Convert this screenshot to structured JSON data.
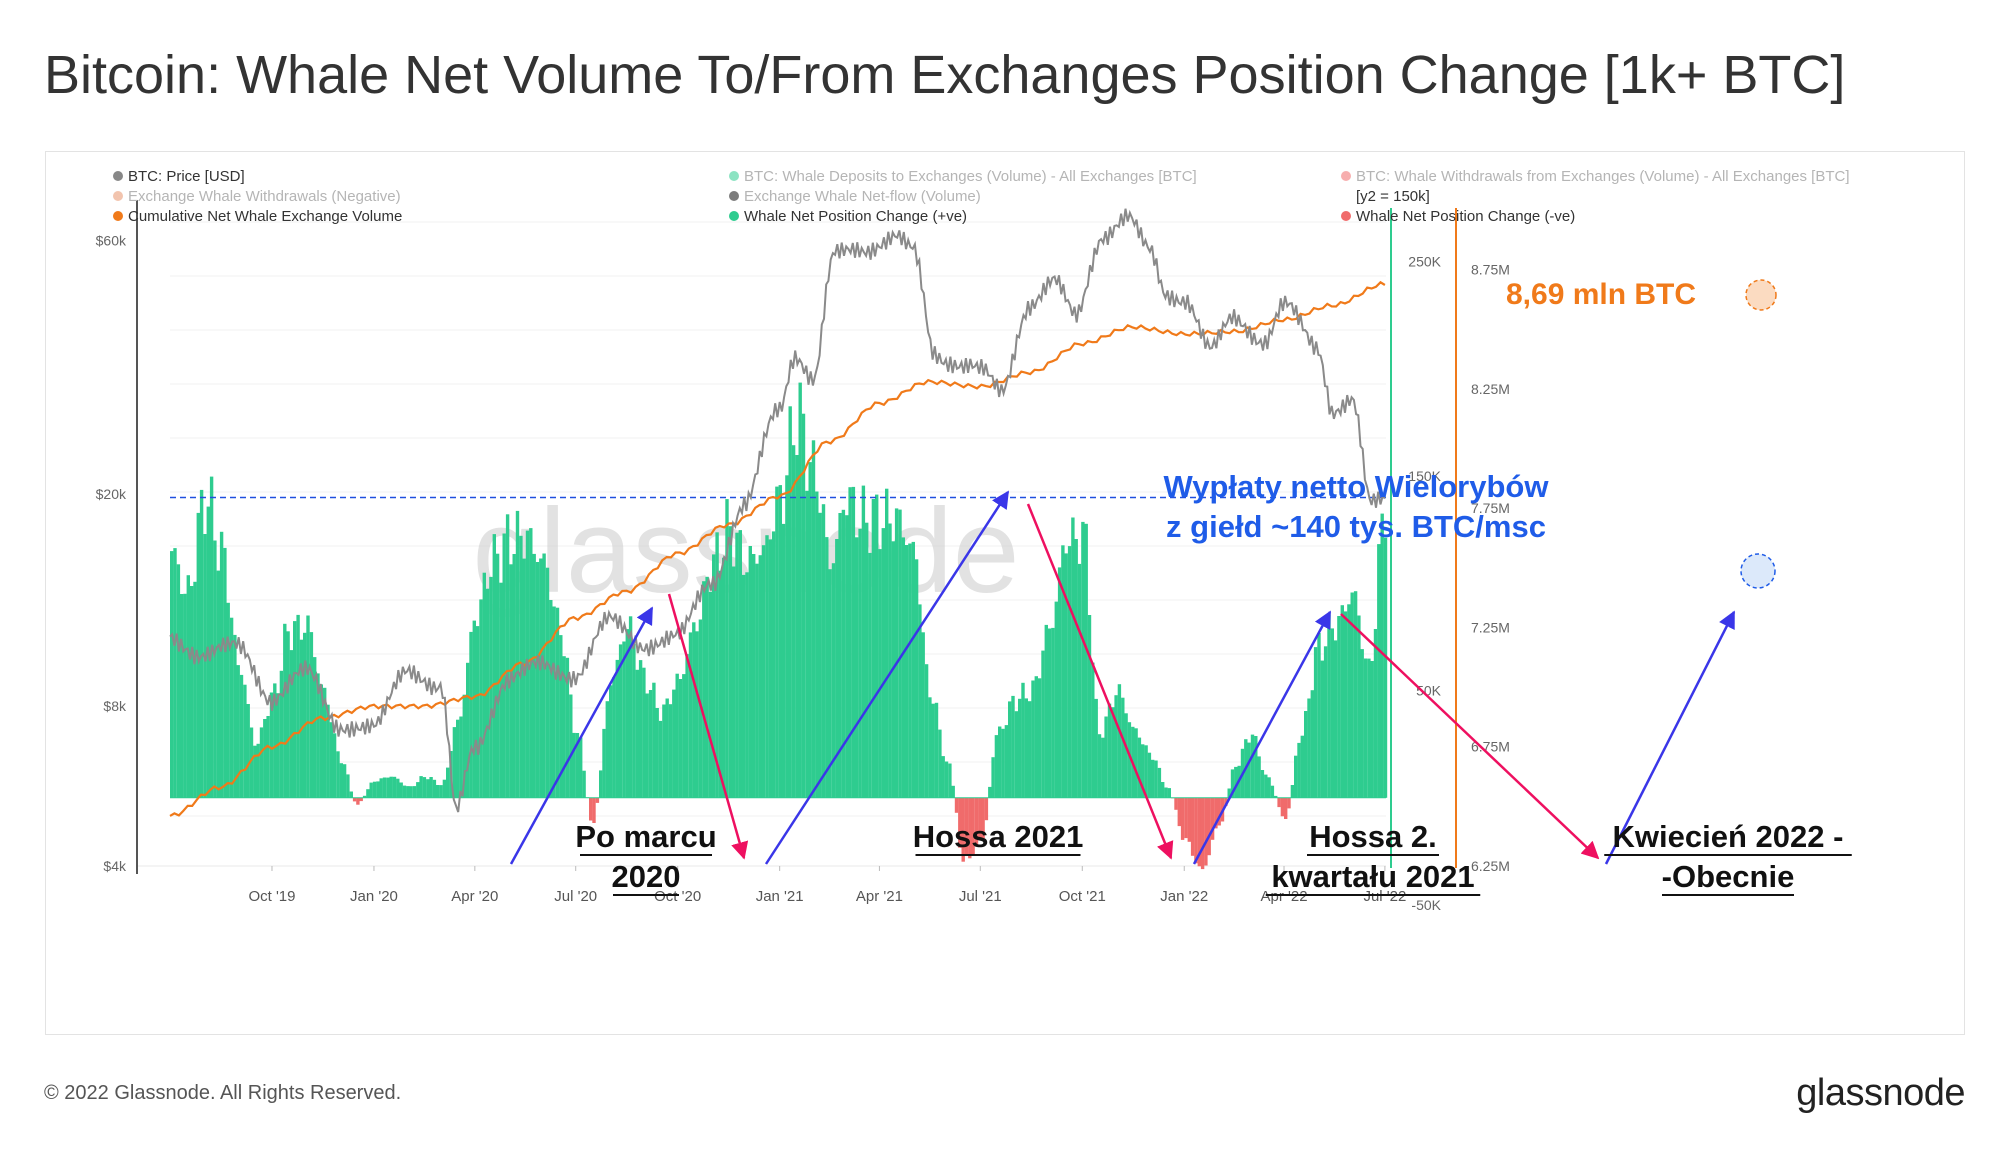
{
  "title": "Bitcoin: Whale Net Volume To/From Exchanges Position Change [1k+ BTC]",
  "footer": {
    "copyright": "© 2022 Glassnode. All Rights Reserved.",
    "logo": "glassnode"
  },
  "watermark": "glassnode",
  "legend": [
    {
      "label": "BTC: Price [USD]",
      "color": "#888888",
      "muted": false
    },
    {
      "label": "BTC: Whale Deposits to Exchanges (Volume) - All Exchanges [BTC]",
      "color": "#2ecc8f",
      "muted": true
    },
    {
      "label": "BTC: Whale Withdrawals from Exchanges (Volume) - All Exchanges [BTC]",
      "color": "#f06b6b",
      "muted": true
    },
    {
      "label": "Exchange Whale Withdrawals (Negative)",
      "color": "#e8936b",
      "muted": true
    },
    {
      "label": "Exchange Whale Net-flow (Volume)",
      "color": "#111111",
      "muted": true
    },
    {
      "label": "[y2 = 150k]",
      "color": "",
      "muted": false
    },
    {
      "label": "Cumulative Net Whale Exchange Volume",
      "color": "#f07a1a",
      "muted": false
    },
    {
      "label": "Whale Net Position Change (+ve)",
      "color": "#2ecc8f",
      "muted": false
    },
    {
      "label": "Whale Net Position Change (-ve)",
      "color": "#f06b6b",
      "muted": false
    }
  ],
  "annotations": {
    "total": "8,69 mln BTC",
    "withdrawals_line1": "Wypłaty netto Wielorybów",
    "withdrawals_line2": "z giełd  ~140 tys. BTC/msc",
    "labels": [
      {
        "lines": [
          "Po marcu",
          "2020"
        ]
      },
      {
        "lines": [
          "Hossa 2021"
        ]
      },
      {
        "lines": [
          "Hossa 2.",
          "kwartału 2021"
        ]
      },
      {
        "lines": [
          "Kwiecień 2022 -",
          "-Obecnie"
        ]
      }
    ]
  },
  "chart_data": {
    "type": "bar",
    "x_tick_labels": [
      "Oct '19",
      "Jan '20",
      "Apr '20",
      "Jul '20",
      "Oct '20",
      "Jan '21",
      "Apr '21",
      "Jul '21",
      "Oct '21",
      "Jan '22",
      "Apr '22",
      "Jul '22"
    ],
    "x_range": [
      "2019-07-01",
      "2022-07-02"
    ],
    "y_price": {
      "label": "BTC: Price [USD]",
      "scale": "log",
      "range": [
        4000,
        65000
      ],
      "ticks": [
        "$4k",
        "$8k",
        "$20k",
        "$60k"
      ],
      "tick_values": [
        4000,
        8000,
        20000,
        60000
      ]
    },
    "y_flow": {
      "range": [
        -50000,
        275000
      ],
      "ticks": [
        "-50K",
        "50K",
        "150K",
        "250K"
      ],
      "tick_values": [
        -50000,
        50000,
        150000,
        250000
      ]
    },
    "y_cumulative": {
      "range": [
        6250000,
        8950000
      ],
      "ticks": [
        "6.25M",
        "6.75M",
        "7.25M",
        "7.75M",
        "8.25M",
        "8.75M"
      ],
      "tick_values": [
        6250000,
        6750000,
        7250000,
        7750000,
        8250000,
        8750000
      ]
    },
    "reference_line_y2": 140000,
    "series": [
      {
        "name": "Whale Net Position Change",
        "axis": "flow",
        "dates": [
          "2019-07-01",
          "2019-07-15",
          "2019-08-01",
          "2019-08-15",
          "2019-09-01",
          "2019-09-15",
          "2019-10-01",
          "2019-10-15",
          "2019-11-01",
          "2019-11-15",
          "2019-12-01",
          "2019-12-15",
          "2020-01-01",
          "2020-01-15",
          "2020-02-01",
          "2020-02-15",
          "2020-03-01",
          "2020-03-15",
          "2020-04-01",
          "2020-04-15",
          "2020-05-01",
          "2020-05-15",
          "2020-06-01",
          "2020-06-15",
          "2020-07-01",
          "2020-07-15",
          "2020-08-01",
          "2020-08-15",
          "2020-09-01",
          "2020-09-15",
          "2020-10-01",
          "2020-10-15",
          "2020-11-01",
          "2020-11-15",
          "2020-12-01",
          "2020-12-15",
          "2021-01-01",
          "2021-01-15",
          "2021-02-01",
          "2021-02-15",
          "2021-03-01",
          "2021-03-15",
          "2021-04-01",
          "2021-04-15",
          "2021-05-01",
          "2021-05-15",
          "2021-06-01",
          "2021-06-15",
          "2021-07-01",
          "2021-07-15",
          "2021-08-01",
          "2021-08-15",
          "2021-09-01",
          "2021-09-15",
          "2021-10-01",
          "2021-10-15",
          "2021-11-01",
          "2021-11-15",
          "2021-12-01",
          "2021-12-15",
          "2022-01-01",
          "2022-01-15",
          "2022-02-01",
          "2022-02-15",
          "2022-03-01",
          "2022-03-15",
          "2022-04-01",
          "2022-04-15",
          "2022-05-01",
          "2022-05-15",
          "2022-06-01",
          "2022-06-15",
          "2022-07-01"
        ],
        "values": [
          115000,
          95000,
          140000,
          115000,
          60000,
          25000,
          48000,
          78000,
          80000,
          50000,
          18000,
          -3000,
          8000,
          10000,
          5000,
          10000,
          6000,
          35000,
          85000,
          110000,
          120000,
          122000,
          110000,
          80000,
          30000,
          -12000,
          55000,
          80000,
          55000,
          40000,
          55000,
          80000,
          110000,
          125000,
          110000,
          115000,
          140000,
          178000,
          150000,
          110000,
          140000,
          130000,
          130000,
          130000,
          115000,
          50000,
          15000,
          -30000,
          -20000,
          30000,
          46000,
          50000,
          80000,
          120000,
          122000,
          30000,
          50000,
          32000,
          20000,
          5000,
          -20000,
          -34000,
          -12000,
          15000,
          30000,
          10000,
          -10000,
          30000,
          70000,
          80000,
          95000,
          60000,
          140000
        ]
      },
      {
        "name": "BTC: Price [USD]",
        "axis": "price",
        "dates": [
          "2019-07-01",
          "2019-08-01",
          "2019-09-01",
          "2019-10-01",
          "2019-11-01",
          "2019-12-01",
          "2020-01-01",
          "2020-02-01",
          "2020-03-01",
          "2020-03-15",
          "2020-04-01",
          "2020-05-01",
          "2020-06-01",
          "2020-07-01",
          "2020-08-01",
          "2020-09-01",
          "2020-10-01",
          "2020-11-01",
          "2020-12-01",
          "2021-01-01",
          "2021-01-15",
          "2021-02-01",
          "2021-02-20",
          "2021-03-15",
          "2021-04-15",
          "2021-05-01",
          "2021-05-20",
          "2021-06-01",
          "2021-06-20",
          "2021-07-01",
          "2021-07-20",
          "2021-08-15",
          "2021-09-05",
          "2021-09-25",
          "2021-10-20",
          "2021-11-10",
          "2021-12-01",
          "2021-12-15",
          "2022-01-01",
          "2022-01-25",
          "2022-02-15",
          "2022-03-15",
          "2022-04-01",
          "2022-05-01",
          "2022-05-15",
          "2022-06-01",
          "2022-06-18",
          "2022-07-01"
        ],
        "values": [
          10800,
          10000,
          10300,
          8300,
          9200,
          7400,
          7200,
          9500,
          8600,
          5000,
          6700,
          9000,
          9500,
          9200,
          11500,
          10500,
          10700,
          13800,
          19000,
          29000,
          37000,
          33000,
          56000,
          58000,
          61000,
          57000,
          37000,
          36000,
          35000,
          34000,
          31000,
          46000,
          50000,
          43000,
          62000,
          66000,
          57000,
          48000,
          47000,
          37000,
          43000,
          39000,
          45000,
          38000,
          29000,
          30000,
          19000,
          19500
        ]
      },
      {
        "name": "Cumulative Net Whale Exchange Volume",
        "axis": "cumulative",
        "dates": [
          "2019-07-01",
          "2019-08-15",
          "2019-10-01",
          "2019-11-15",
          "2020-01-01",
          "2020-02-15",
          "2020-04-01",
          "2020-05-15",
          "2020-07-01",
          "2020-08-15",
          "2020-10-01",
          "2020-11-15",
          "2021-01-01",
          "2021-02-15",
          "2021-04-01",
          "2021-05-15",
          "2021-07-01",
          "2021-08-15",
          "2021-10-01",
          "2021-11-15",
          "2022-01-01",
          "2022-02-15",
          "2022-04-01",
          "2022-05-15",
          "2022-07-01"
        ],
        "values": [
          6460000,
          6580000,
          6750000,
          6870000,
          6920000,
          6920000,
          6960000,
          7100000,
          7290000,
          7400000,
          7560000,
          7680000,
          7800000,
          8030000,
          8190000,
          8280000,
          8260000,
          8320000,
          8440000,
          8510000,
          8480000,
          8490000,
          8540000,
          8600000,
          8690000
        ]
      }
    ]
  }
}
